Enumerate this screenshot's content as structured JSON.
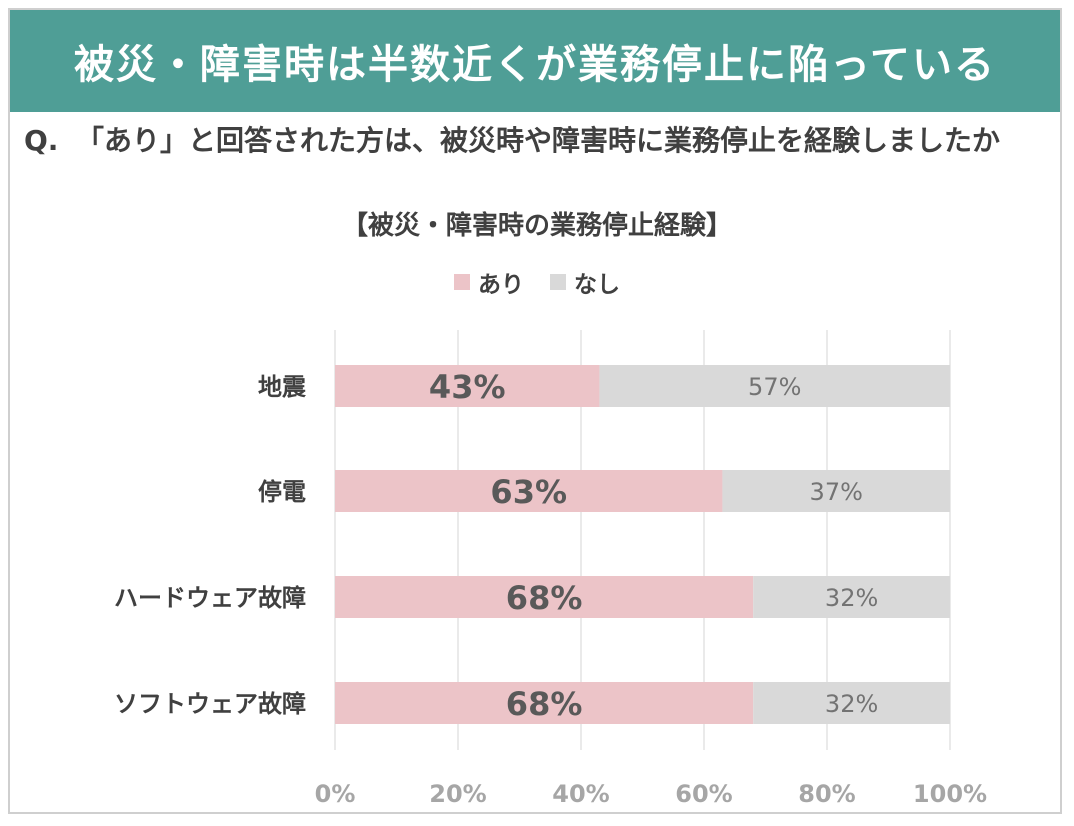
{
  "banner_title": "被災・障害時は半数近くが業務停止に陥っている",
  "question_prefix": "Q.",
  "question_text": "「あり」と回答された方は、被災時や障害時に業務停止を経験しましたか",
  "colors": {
    "banner": "#4f9e96",
    "ari": "#ecc4c8",
    "nashi": "#d9d9d9",
    "grid": "#e4e4e4",
    "text": "#404040",
    "tick": "#a6a6a6"
  },
  "chart_data": {
    "type": "bar",
    "orientation": "horizontal",
    "stacked": true,
    "title": "【被災・障害時の業務停止経験】",
    "categories": [
      "地震",
      "停電",
      "ハードウェア故障",
      "ソフトウェア故障"
    ],
    "series": [
      {
        "name": "あり",
        "values": [
          43,
          63,
          68,
          68
        ],
        "labels": [
          "43%",
          "63%",
          "68%",
          "68%"
        ]
      },
      {
        "name": "なし",
        "values": [
          57,
          37,
          32,
          32
        ],
        "labels": [
          "57%",
          "37%",
          "32%",
          "32%"
        ]
      }
    ],
    "xlim": [
      0,
      100
    ],
    "xticks": [
      "0%",
      "20%",
      "40%",
      "60%",
      "80%",
      "100%"
    ],
    "legend_position": "top",
    "grid": true
  }
}
